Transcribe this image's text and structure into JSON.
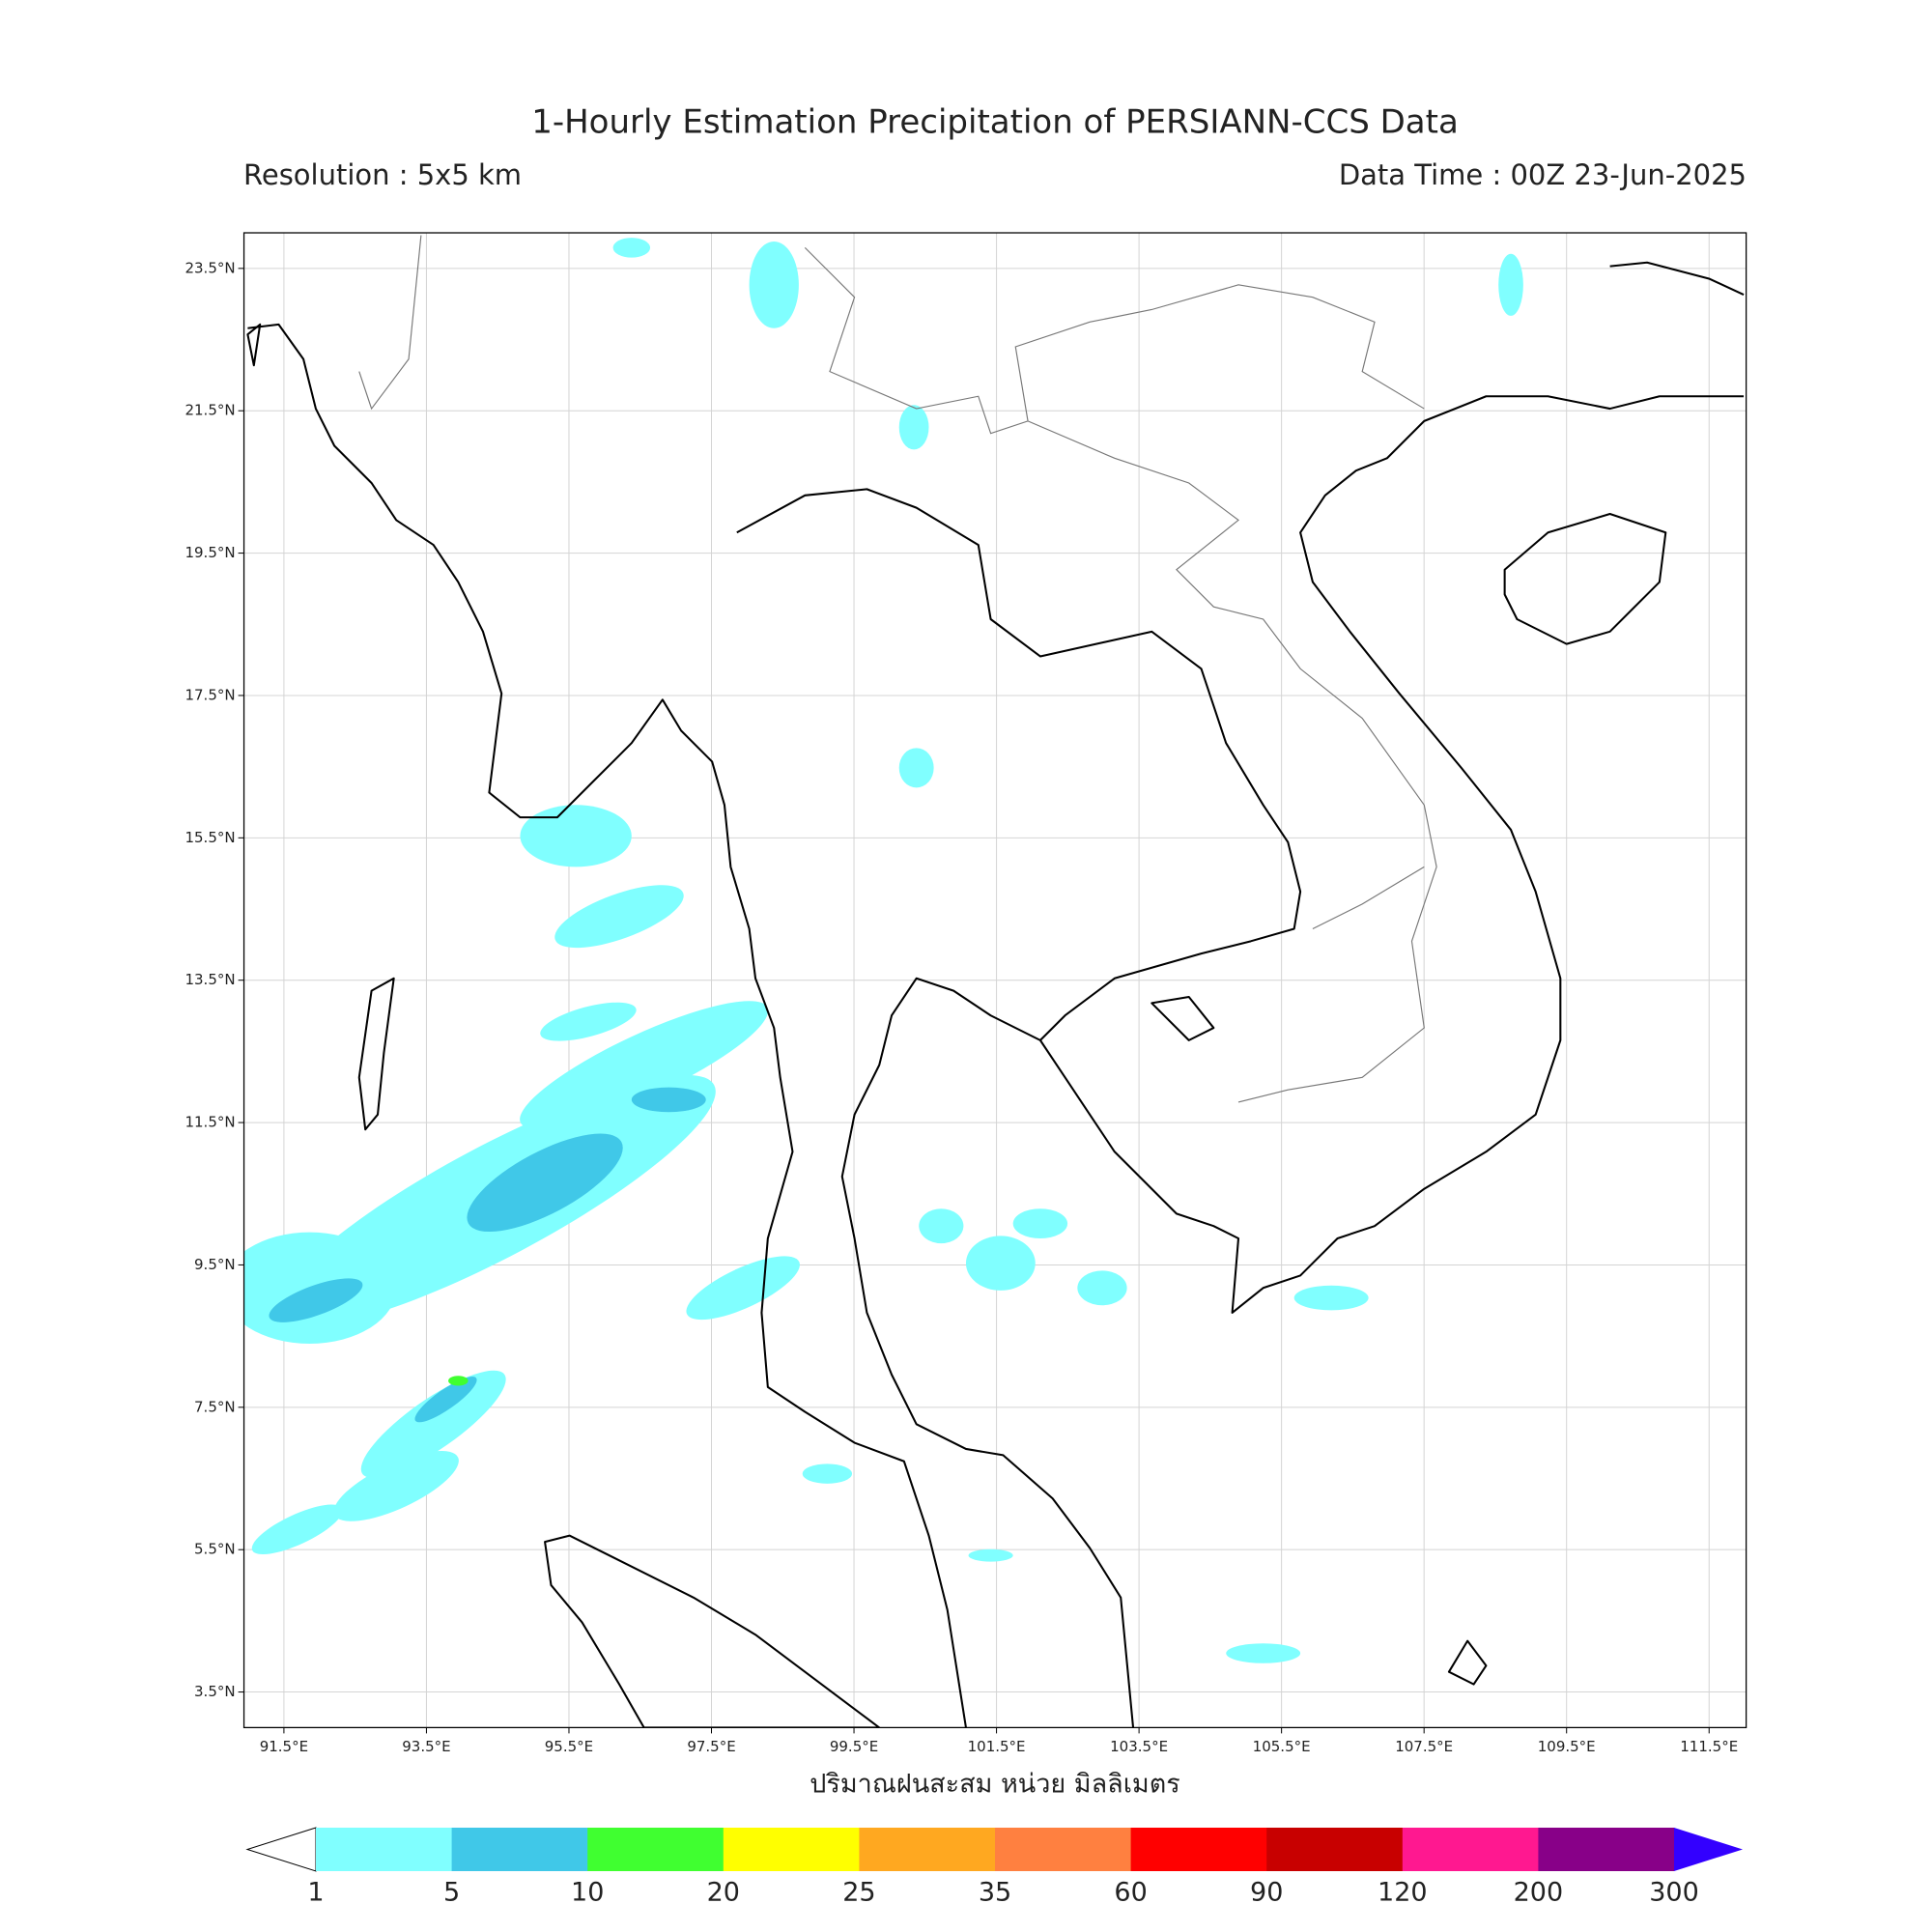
{
  "chart_data": {
    "type": "map",
    "title": "1-Hourly Estimation Precipitation of PERSIANN-CCS Data",
    "subtitle_left": "Resolution : 5x5 km",
    "subtitle_right": "Data Time : 00Z 23-Jun-2025",
    "xlim": [
      90.94,
      112.02
    ],
    "ylim": [
      3.0,
      24.0
    ],
    "xticks": [
      {
        "value": 91.5,
        "label": "91.5°E"
      },
      {
        "value": 93.5,
        "label": "93.5°E"
      },
      {
        "value": 95.5,
        "label": "95.5°E"
      },
      {
        "value": 97.5,
        "label": "97.5°E"
      },
      {
        "value": 99.5,
        "label": "99.5°E"
      },
      {
        "value": 101.5,
        "label": "101.5°E"
      },
      {
        "value": 103.5,
        "label": "103.5°E"
      },
      {
        "value": 105.5,
        "label": "105.5°E"
      },
      {
        "value": 107.5,
        "label": "107.5°E"
      },
      {
        "value": 109.5,
        "label": "109.5°E"
      },
      {
        "value": 111.5,
        "label": "111.5°E"
      }
    ],
    "yticks": [
      {
        "value": 3.5,
        "label": "3.5°N"
      },
      {
        "value": 5.5,
        "label": "5.5°N"
      },
      {
        "value": 7.5,
        "label": "7.5°N"
      },
      {
        "value": 9.5,
        "label": "9.5°N"
      },
      {
        "value": 11.5,
        "label": "11.5°N"
      },
      {
        "value": 13.5,
        "label": "13.5°N"
      },
      {
        "value": 15.5,
        "label": "15.5°N"
      },
      {
        "value": 17.5,
        "label": "17.5°N"
      },
      {
        "value": 19.5,
        "label": "19.5°N"
      },
      {
        "value": 21.5,
        "label": "21.5°N"
      },
      {
        "value": 23.5,
        "label": "23.5°N"
      }
    ],
    "grid": true,
    "colorbar": {
      "label": "ปริมาณฝนสะสม หน่วย มิลลิเมตร",
      "levels": [
        1,
        5,
        10,
        20,
        25,
        35,
        60,
        90,
        120,
        200,
        300
      ],
      "colors": [
        "#ffffff",
        "#80ffff",
        "#40c8e8",
        "#40ff30",
        "#ffff00",
        "#ffa820",
        "#ff8040",
        "#ff0000",
        "#c80000",
        "#ff1890",
        "#880088",
        "#3300ff"
      ]
    }
  }
}
